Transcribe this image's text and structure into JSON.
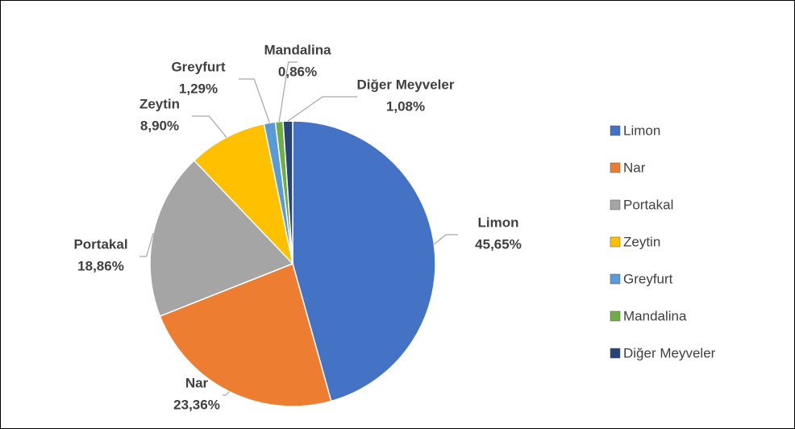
{
  "chart_data": {
    "type": "pie",
    "categories": [
      "Limon",
      "Nar",
      "Portakal",
      "Zeytin",
      "Greyfurt",
      "Mandalina",
      "Diğer Meyveler"
    ],
    "values": [
      45.65,
      23.36,
      18.86,
      8.9,
      1.29,
      0.86,
      1.08
    ],
    "value_labels": [
      "45,65%",
      "23,36%",
      "18,86%",
      "8,90%",
      "1,29%",
      "0,86%",
      "1,08%"
    ],
    "colors": [
      "#4472c4",
      "#ed7d31",
      "#a5a5a5",
      "#ffc000",
      "#5b9bd5",
      "#70ad47",
      "#264478"
    ],
    "legend": "right"
  }
}
